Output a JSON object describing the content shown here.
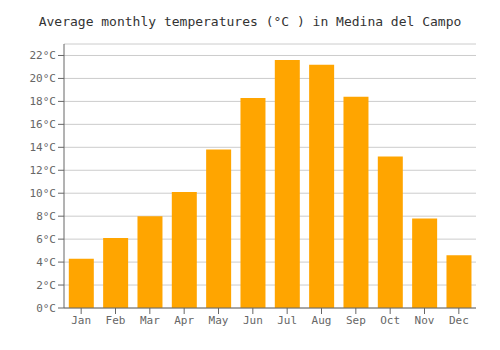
{
  "chart_data": {
    "type": "bar",
    "title": "Average monthly temperatures (°C ) in Medina del Campo",
    "categories": [
      "Jan",
      "Feb",
      "Mar",
      "Apr",
      "May",
      "Jun",
      "Jul",
      "Aug",
      "Sep",
      "Oct",
      "Nov",
      "Dec"
    ],
    "values": [
      4.3,
      6.1,
      8.0,
      10.1,
      13.8,
      18.3,
      21.6,
      21.2,
      18.4,
      13.2,
      7.8,
      4.6
    ],
    "color": "#FFA500",
    "ylim": [
      0,
      23
    ],
    "yticks": [
      {
        "value": 0,
        "label": "0°C"
      },
      {
        "value": 2,
        "label": "2°C"
      },
      {
        "value": 4,
        "label": "4°C"
      },
      {
        "value": 6,
        "label": "6°C"
      },
      {
        "value": 8,
        "label": "8°C"
      },
      {
        "value": 10,
        "label": "10°C"
      },
      {
        "value": 12,
        "label": "12°C"
      },
      {
        "value": 14,
        "label": "14°C"
      },
      {
        "value": 16,
        "label": "16°C"
      },
      {
        "value": 18,
        "label": "18°C"
      },
      {
        "value": 20,
        "label": "20°C"
      },
      {
        "value": 22,
        "label": "22°C"
      }
    ],
    "grid": true
  }
}
